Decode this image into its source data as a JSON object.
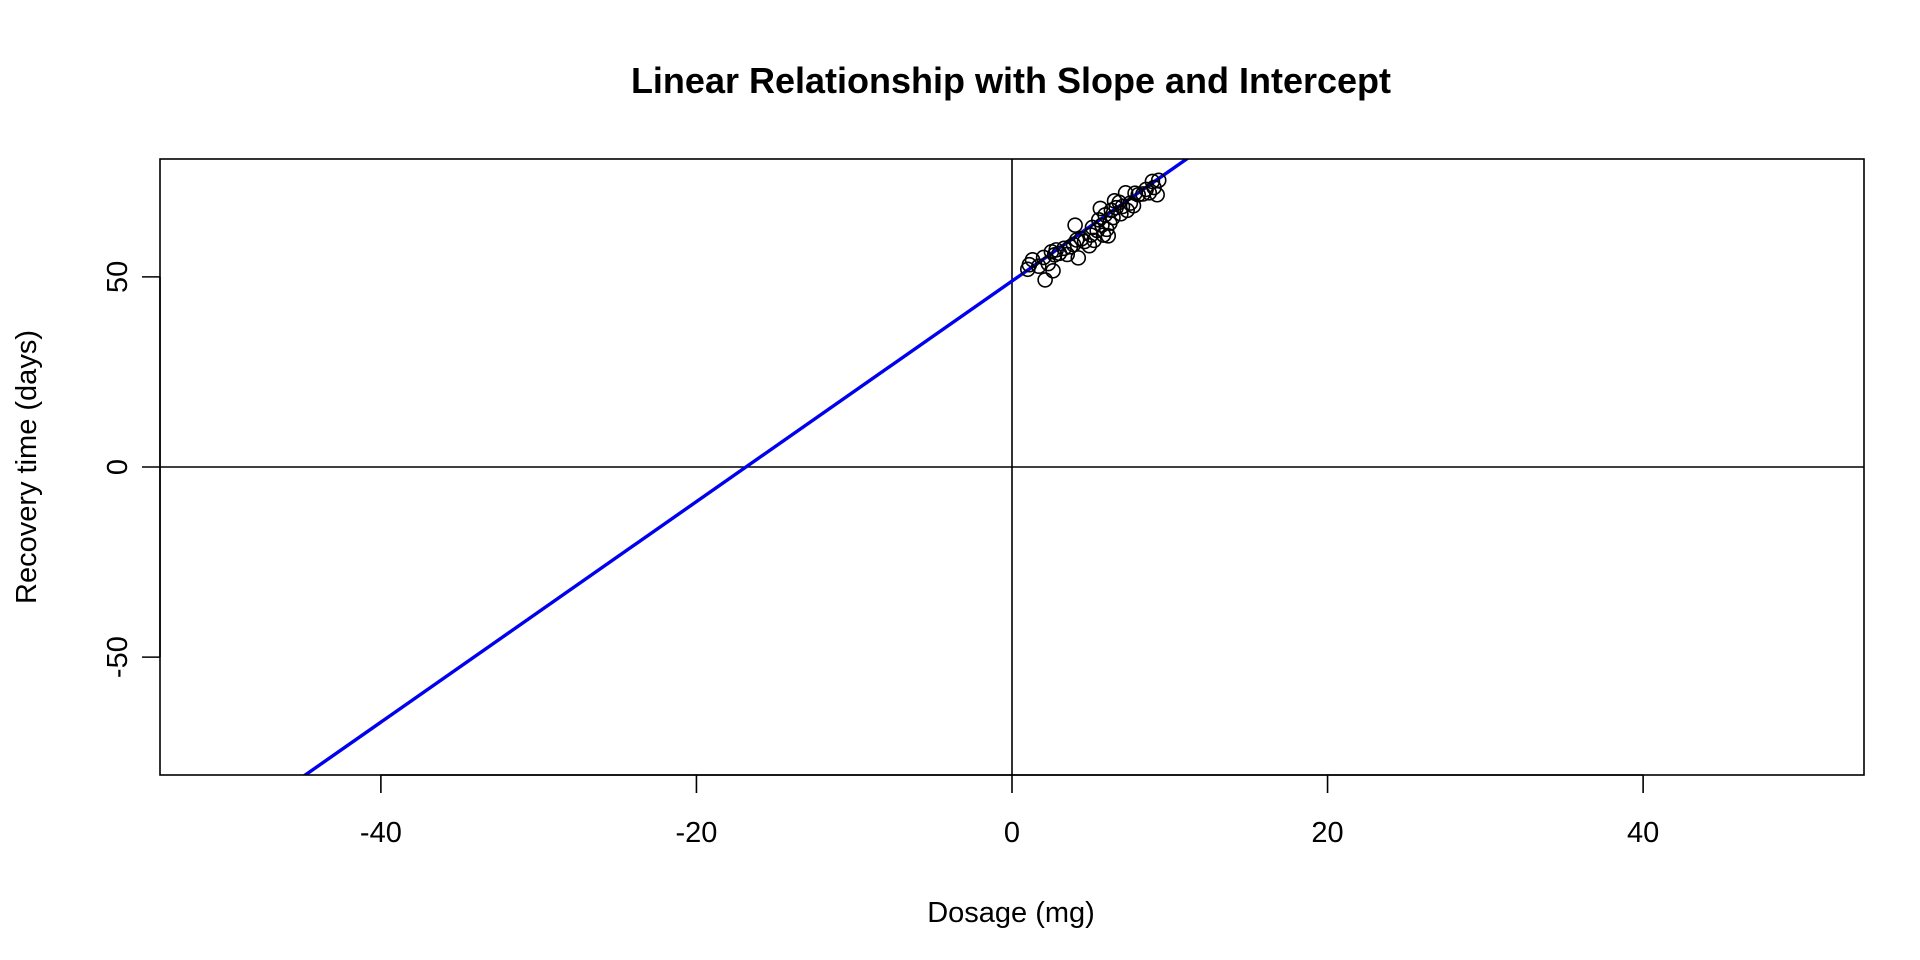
{
  "chart_data": {
    "type": "scatter",
    "title": "Linear Relationship with Slope and Intercept",
    "xlabel": "Dosage (mg)",
    "ylabel": "Recovery time (days)",
    "xlim": [
      -54,
      54
    ],
    "ylim": [
      -81,
      81
    ],
    "x_ticks": [
      -40,
      -20,
      0,
      20,
      40
    ],
    "y_ticks": [
      -50,
      0,
      50
    ],
    "grid": false,
    "reference_lines": {
      "x0": 0,
      "y0": 0,
      "color": "#000000"
    },
    "regression_line": {
      "intercept": 48.9,
      "slope": 2.9,
      "color": "#0000ee"
    },
    "point_style": {
      "shape": "open-circle",
      "color": "#000000"
    },
    "points": [
      {
        "x": 1.0,
        "y": 52.0
      },
      {
        "x": 1.1,
        "y": 53.2
      },
      {
        "x": 1.3,
        "y": 54.5
      },
      {
        "x": 1.7,
        "y": 52.8
      },
      {
        "x": 2.0,
        "y": 55.1
      },
      {
        "x": 2.1,
        "y": 49.2
      },
      {
        "x": 2.3,
        "y": 53.5
      },
      {
        "x": 2.5,
        "y": 56.6
      },
      {
        "x": 2.6,
        "y": 51.6
      },
      {
        "x": 2.7,
        "y": 55.8
      },
      {
        "x": 2.8,
        "y": 57.1
      },
      {
        "x": 3.0,
        "y": 56.2
      },
      {
        "x": 3.3,
        "y": 57.5
      },
      {
        "x": 3.5,
        "y": 55.9
      },
      {
        "x": 3.7,
        "y": 57.9
      },
      {
        "x": 3.9,
        "y": 58.5
      },
      {
        "x": 4.0,
        "y": 63.6
      },
      {
        "x": 4.1,
        "y": 59.7
      },
      {
        "x": 4.2,
        "y": 55.0
      },
      {
        "x": 4.4,
        "y": 60.0
      },
      {
        "x": 4.6,
        "y": 59.3
      },
      {
        "x": 4.9,
        "y": 58.2
      },
      {
        "x": 5.0,
        "y": 61.0
      },
      {
        "x": 5.1,
        "y": 63.0
      },
      {
        "x": 5.2,
        "y": 59.6
      },
      {
        "x": 5.4,
        "y": 62.2
      },
      {
        "x": 5.5,
        "y": 65.0
      },
      {
        "x": 5.6,
        "y": 68.0
      },
      {
        "x": 5.7,
        "y": 63.6
      },
      {
        "x": 5.8,
        "y": 61.0
      },
      {
        "x": 5.9,
        "y": 66.3
      },
      {
        "x": 6.0,
        "y": 62.5
      },
      {
        "x": 6.1,
        "y": 60.8
      },
      {
        "x": 6.2,
        "y": 64.1
      },
      {
        "x": 6.3,
        "y": 67.5
      },
      {
        "x": 6.4,
        "y": 65.6
      },
      {
        "x": 6.5,
        "y": 70.0
      },
      {
        "x": 6.6,
        "y": 68.2
      },
      {
        "x": 6.8,
        "y": 69.6
      },
      {
        "x": 6.9,
        "y": 66.6
      },
      {
        "x": 7.0,
        "y": 68.5
      },
      {
        "x": 7.2,
        "y": 72.1
      },
      {
        "x": 7.3,
        "y": 67.5
      },
      {
        "x": 7.5,
        "y": 69.4
      },
      {
        "x": 7.7,
        "y": 68.7
      },
      {
        "x": 7.8,
        "y": 72.0
      },
      {
        "x": 8.0,
        "y": 71.6
      },
      {
        "x": 8.3,
        "y": 71.8
      },
      {
        "x": 8.5,
        "y": 73.0
      },
      {
        "x": 8.7,
        "y": 72.1
      },
      {
        "x": 8.9,
        "y": 75.1
      },
      {
        "x": 9.0,
        "y": 73.5
      },
      {
        "x": 9.2,
        "y": 71.6
      },
      {
        "x": 9.3,
        "y": 75.4
      }
    ]
  }
}
